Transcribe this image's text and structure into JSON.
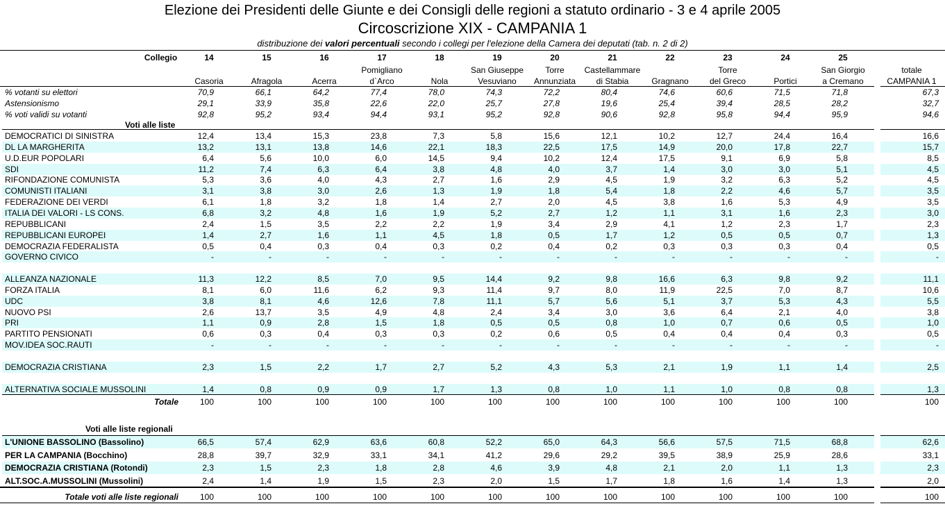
{
  "title": "Elezione dei Presidenti delle Giunte e dei Consigli delle regioni a statuto ordinario - 3 e 4 aprile 2005",
  "circoscrizione": "Circoscrizione XIX - CAMPANIA  1",
  "subtitle_pre": "distribuzione dei ",
  "subtitle_bold": "valori percentuali",
  "subtitle_post": " secondo i collegi per l'elezione della Camera dei deputati (tab. n. 2 di 2)",
  "collegio_label": "Collegio",
  "collegi": [
    {
      "num": "14",
      "name1": "",
      "name2": "Casoria"
    },
    {
      "num": "15",
      "name1": "",
      "name2": "Afragola"
    },
    {
      "num": "16",
      "name1": "",
      "name2": "Acerra"
    },
    {
      "num": "17",
      "name1": "Pomigliano",
      "name2": "d`Arco"
    },
    {
      "num": "18",
      "name1": "",
      "name2": "Nola"
    },
    {
      "num": "19",
      "name1": "San Giuseppe",
      "name2": "Vesuviano"
    },
    {
      "num": "20",
      "name1": "Torre",
      "name2": "Annunziata"
    },
    {
      "num": "21",
      "name1": "Castellammare",
      "name2": "di Stabia"
    },
    {
      "num": "22",
      "name1": "",
      "name2": "Gragnano"
    },
    {
      "num": "23",
      "name1": "Torre",
      "name2": "del Greco"
    },
    {
      "num": "24",
      "name1": "",
      "name2": "Portici"
    },
    {
      "num": "25",
      "name1": "San Giorgio",
      "name2": "a Cremano"
    }
  ],
  "totale_header": {
    "line1": "totale",
    "line2": "CAMPANIA 1"
  },
  "turnout": [
    {
      "label": "% votanti su elettori",
      "values": [
        "70,9",
        "66,1",
        "64,2",
        "77,4",
        "78,0",
        "74,3",
        "72,2",
        "80,4",
        "74,6",
        "60,6",
        "71,5",
        "71,8"
      ],
      "total": "67,3"
    },
    {
      "label": "Astensionismo",
      "values": [
        "29,1",
        "33,9",
        "35,8",
        "22,6",
        "22,0",
        "25,7",
        "27,8",
        "19,6",
        "25,4",
        "39,4",
        "28,5",
        "28,2"
      ],
      "total": "32,7"
    },
    {
      "label": "% voti validi su votanti",
      "values": [
        "92,8",
        "95,2",
        "93,4",
        "94,4",
        "93,1",
        "95,2",
        "92,8",
        "90,6",
        "92,8",
        "95,8",
        "94,4",
        "95,9"
      ],
      "total": "94,6"
    }
  ],
  "section_liste": "Voti alle liste",
  "liste": [
    {
      "label": "DEMOCRATICI DI SINISTRA",
      "values": [
        "12,4",
        "13,4",
        "15,3",
        "23,8",
        "7,3",
        "5,8",
        "15,6",
        "12,1",
        "10,2",
        "12,7",
        "24,4",
        "16,4"
      ],
      "total": "16,6"
    },
    {
      "label": "DL LA MARGHERITA",
      "values": [
        "13,2",
        "13,1",
        "13,8",
        "14,6",
        "22,1",
        "18,3",
        "22,5",
        "17,5",
        "14,9",
        "20,0",
        "17,8",
        "22,7"
      ],
      "total": "15,7"
    },
    {
      "label": "U.D.EUR POPOLARI",
      "values": [
        "6,4",
        "5,6",
        "10,0",
        "6,0",
        "14,5",
        "9,4",
        "10,2",
        "12,4",
        "17,5",
        "9,1",
        "6,9",
        "5,8"
      ],
      "total": "8,5"
    },
    {
      "label": "SDI",
      "values": [
        "11,2",
        "7,4",
        "6,3",
        "6,4",
        "3,8",
        "4,8",
        "4,0",
        "3,7",
        "1,4",
        "3,0",
        "3,0",
        "5,1"
      ],
      "total": "4,5"
    },
    {
      "label": "RIFONDAZIONE COMUNISTA",
      "values": [
        "5,3",
        "3,6",
        "4,0",
        "4,3",
        "2,7",
        "1,6",
        "2,9",
        "4,5",
        "1,9",
        "3,2",
        "6,3",
        "5,2"
      ],
      "total": "4,5"
    },
    {
      "label": "COMUNISTI ITALIANI",
      "values": [
        "3,1",
        "3,8",
        "3,0",
        "2,6",
        "1,3",
        "1,9",
        "1,8",
        "5,4",
        "1,8",
        "2,2",
        "4,6",
        "5,7"
      ],
      "total": "3,5"
    },
    {
      "label": "FEDERAZIONE DEI VERDI",
      "values": [
        "6,1",
        "1,8",
        "3,2",
        "1,8",
        "1,4",
        "2,7",
        "2,0",
        "4,5",
        "3,8",
        "1,6",
        "5,3",
        "4,9"
      ],
      "total": "3,5"
    },
    {
      "label": "ITALIA DEI VALORI - LS CONS.",
      "values": [
        "6,8",
        "3,2",
        "4,8",
        "1,6",
        "1,9",
        "5,2",
        "2,7",
        "1,2",
        "1,1",
        "3,1",
        "1,6",
        "2,3"
      ],
      "total": "3,0"
    },
    {
      "label": "REPUBBLICANI",
      "values": [
        "2,4",
        "1,5",
        "3,5",
        "2,2",
        "2,2",
        "1,9",
        "3,4",
        "2,9",
        "4,1",
        "1,2",
        "2,3",
        "1,7"
      ],
      "total": "2,3"
    },
    {
      "label": "REPUBBLICANI EUROPEI",
      "values": [
        "1,4",
        "2,7",
        "1,6",
        "1,1",
        "4,5",
        "1,8",
        "0,5",
        "1,7",
        "1,2",
        "0,5",
        "0,5",
        "0,7"
      ],
      "total": "1,3"
    },
    {
      "label": "DEMOCRAZIA FEDERALISTA",
      "values": [
        "0,5",
        "0,4",
        "0,3",
        "0,4",
        "0,3",
        "0,2",
        "0,4",
        "0,2",
        "0,3",
        "0,3",
        "0,3",
        "0,4"
      ],
      "total": "0,5"
    },
    {
      "label": "GOVERNO CIVICO",
      "values": [
        "-",
        "-",
        "-",
        "-",
        "-",
        "-",
        "-",
        "-",
        "-",
        "-",
        "-",
        "-"
      ],
      "total": "-"
    },
    {
      "label": "",
      "values": [
        "",
        "",
        "",
        "",
        "",
        "",
        "",
        "",
        "",
        "",
        "",
        ""
      ],
      "total": ""
    },
    {
      "label": "ALLEANZA NAZIONALE",
      "values": [
        "11,3",
        "12,2",
        "8,5",
        "7,0",
        "9,5",
        "14,4",
        "9,2",
        "9,8",
        "16,6",
        "6,3",
        "9,8",
        "9,2"
      ],
      "total": "11,1"
    },
    {
      "label": "FORZA ITALIA",
      "values": [
        "8,1",
        "6,0",
        "11,6",
        "6,2",
        "9,3",
        "11,4",
        "9,7",
        "8,0",
        "11,9",
        "22,5",
        "7,0",
        "8,7"
      ],
      "total": "10,6"
    },
    {
      "label": "UDC",
      "values": [
        "3,8",
        "8,1",
        "4,6",
        "12,6",
        "7,8",
        "11,1",
        "5,7",
        "5,6",
        "5,1",
        "3,7",
        "5,3",
        "4,3"
      ],
      "total": "5,5"
    },
    {
      "label": "NUOVO PSI",
      "values": [
        "2,6",
        "13,7",
        "3,5",
        "4,9",
        "4,8",
        "2,4",
        "3,4",
        "3,0",
        "3,6",
        "6,4",
        "2,1",
        "4,0"
      ],
      "total": "3,8"
    },
    {
      "label": "PRI",
      "values": [
        "1,1",
        "0,9",
        "2,8",
        "1,5",
        "1,8",
        "0,5",
        "0,5",
        "0,8",
        "1,0",
        "0,7",
        "0,6",
        "0,5"
      ],
      "total": "1,0"
    },
    {
      "label": "PARTITO PENSIONATI",
      "values": [
        "0,6",
        "0,3",
        "0,4",
        "0,3",
        "0,3",
        "0,2",
        "0,6",
        "0,5",
        "0,4",
        "0,4",
        "0,4",
        "0,3"
      ],
      "total": "0,5"
    },
    {
      "label": "MOV.IDEA SOC.RAUTI",
      "values": [
        "-",
        "-",
        "-",
        "-",
        "-",
        "-",
        "-",
        "-",
        "-",
        "-",
        "-",
        "-"
      ],
      "total": "-"
    },
    {
      "label": "",
      "values": [
        "",
        "",
        "",
        "",
        "",
        "",
        "",
        "",
        "",
        "",
        "",
        ""
      ],
      "total": ""
    },
    {
      "label": "DEMOCRAZIA CRISTIANA",
      "values": [
        "2,3",
        "1,5",
        "2,2",
        "1,7",
        "2,7",
        "5,2",
        "4,3",
        "5,3",
        "2,1",
        "1,9",
        "1,1",
        "1,4"
      ],
      "total": "2,5"
    },
    {
      "label": "",
      "values": [
        "",
        "",
        "",
        "",
        "",
        "",
        "",
        "",
        "",
        "",
        "",
        ""
      ],
      "total": ""
    },
    {
      "label": "ALTERNATIVA SOCIALE MUSSOLINI",
      "values": [
        "1,4",
        "0,8",
        "0,9",
        "0,9",
        "1,7",
        "1,3",
        "0,8",
        "1,0",
        "1,1",
        "1,0",
        "0,8",
        "0,8"
      ],
      "total": "1,3"
    }
  ],
  "totale_liste": {
    "label": "Totale",
    "values": [
      "100",
      "100",
      "100",
      "100",
      "100",
      "100",
      "100",
      "100",
      "100",
      "100",
      "100",
      "100"
    ],
    "total": "100"
  },
  "section_regionali": "Voti alle liste regionali",
  "regionali": [
    {
      "label": "L'UNIONE BASSOLINO (Bassolino)",
      "values": [
        "66,5",
        "57,4",
        "62,9",
        "63,6",
        "60,8",
        "52,2",
        "65,0",
        "64,3",
        "56,6",
        "57,5",
        "71,5",
        "68,8"
      ],
      "total": "62,6"
    },
    {
      "label": "PER LA CAMPANIA (Bocchino)",
      "values": [
        "28,8",
        "39,7",
        "32,9",
        "33,1",
        "34,1",
        "41,2",
        "29,6",
        "29,2",
        "39,5",
        "38,9",
        "25,9",
        "28,6"
      ],
      "total": "33,1"
    },
    {
      "label": "DEMOCRAZIA CRISTIANA (Rotondi)",
      "values": [
        "2,3",
        "1,5",
        "2,3",
        "1,8",
        "2,8",
        "4,6",
        "3,9",
        "4,8",
        "2,1",
        "2,0",
        "1,1",
        "1,3"
      ],
      "total": "2,3"
    },
    {
      "label": "ALT.SOC.A.MUSSOLINI (Mussolini)",
      "values": [
        "2,4",
        "1,4",
        "1,9",
        "1,5",
        "2,3",
        "2,0",
        "1,5",
        "1,7",
        "1,8",
        "1,6",
        "1,4",
        "1,3"
      ],
      "total": "2,0"
    }
  ],
  "totale_regionali": {
    "label": "Totale voti alle liste regionali",
    "values": [
      "100",
      "100",
      "100",
      "100",
      "100",
      "100",
      "100",
      "100",
      "100",
      "100",
      "100",
      "100"
    ],
    "total": "100"
  },
  "colors": {
    "band": "#ddfbfb",
    "line": "#000000"
  }
}
